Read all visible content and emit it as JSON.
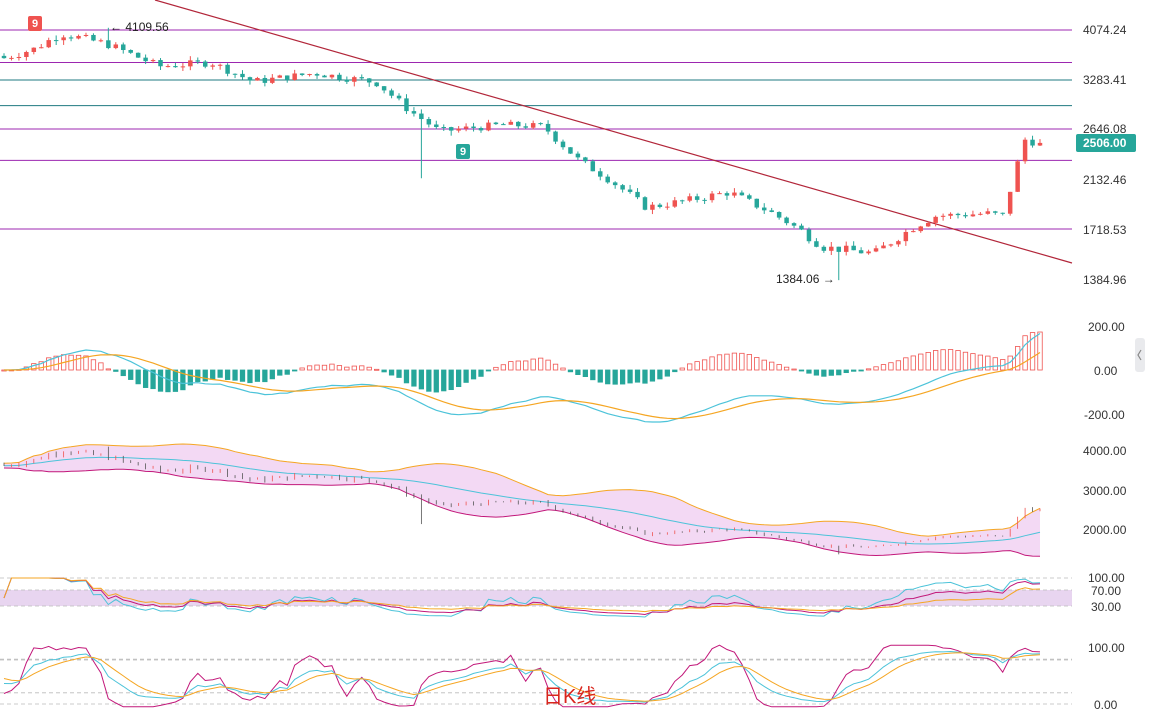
{
  "colors": {
    "up": "#ef5350",
    "down": "#26a69a",
    "trendline": "#b2263a",
    "magenta_level": "#9c27b0",
    "teal_level": "#1f7a80",
    "ma_blue": "#4cc3d9",
    "ma_orange": "#f5a623",
    "boll_upper": "#f5a623",
    "boll_lower": "#c2187a",
    "boll_fill": "#f3d9f4",
    "rsi_band": "#e8d5f0",
    "price_tag": "#26a69a"
  },
  "labels": {
    "watermark": "日K线",
    "high_note": "4109.56",
    "low_note": "1384.06",
    "current_price": "2506.00",
    "signal_red": "9",
    "signal_green": "9"
  },
  "chart_data": [
    {
      "type": "candlestick",
      "title": "",
      "y_ticks": [
        "4074.24",
        "3283.41",
        "2646.08",
        "2132.46",
        "1718.53",
        "1384.96"
      ],
      "ylim": [
        1200,
        4500
      ],
      "horizontal_levels": [
        {
          "value": 4074.24,
          "color": "magenta"
        },
        {
          "value": 3560,
          "color": "magenta"
        },
        {
          "value": 3283.41,
          "color": "teal"
        },
        {
          "value": 2950,
          "color": "teal"
        },
        {
          "value": 2646.08,
          "color": "magenta"
        },
        {
          "value": 2330,
          "color": "magenta"
        },
        {
          "value": 1718.53,
          "color": "magenta"
        }
      ],
      "trendline": [
        {
          "x": 0,
          "y": 4700
        },
        {
          "x": 1,
          "y": 1480
        }
      ],
      "annotations": [
        {
          "text": "4109.56",
          "type": "high"
        },
        {
          "text": "1384.06",
          "type": "low"
        }
      ],
      "anchors": [
        {
          "x": 0.0,
          "close": 3630
        },
        {
          "x": 0.03,
          "close": 3780
        },
        {
          "x": 0.055,
          "close": 4020
        },
        {
          "x": 0.1,
          "close": 3850
        },
        {
          "x": 0.15,
          "close": 3500
        },
        {
          "x": 0.2,
          "close": 3560
        },
        {
          "x": 0.24,
          "close": 3260
        },
        {
          "x": 0.3,
          "close": 3390
        },
        {
          "x": 0.36,
          "close": 3250
        },
        {
          "x": 0.39,
          "close": 2900
        },
        {
          "x": 0.42,
          "close": 2620
        },
        {
          "x": 0.48,
          "close": 2700
        },
        {
          "x": 0.52,
          "close": 2680
        },
        {
          "x": 0.555,
          "close": 2330
        },
        {
          "x": 0.59,
          "close": 2100
        },
        {
          "x": 0.62,
          "close": 1900
        },
        {
          "x": 0.66,
          "close": 1960
        },
        {
          "x": 0.7,
          "close": 2030
        },
        {
          "x": 0.74,
          "close": 1860
        },
        {
          "x": 0.79,
          "close": 1600
        },
        {
          "x": 0.84,
          "close": 1560
        },
        {
          "x": 0.9,
          "close": 1830
        },
        {
          "x": 0.95,
          "close": 1850
        },
        {
          "x": 0.965,
          "close": 1830
        },
        {
          "x": 0.975,
          "close": 2180
        },
        {
          "x": 0.985,
          "close": 2540
        },
        {
          "x": 1.0,
          "close": 2506
        }
      ]
    },
    {
      "type": "macd",
      "y_ticks": [
        "200.00",
        "0.00",
        "-200.00"
      ],
      "ylim": [
        -260,
        260
      ]
    },
    {
      "type": "bollinger",
      "y_ticks": [
        "4000.00",
        "3000.00",
        "2000.00"
      ],
      "ylim": [
        1300,
        4500
      ]
    },
    {
      "type": "rsi",
      "y_ticks": [
        "100.00",
        "70.00",
        "30.00"
      ],
      "ylim": [
        0,
        110
      ]
    },
    {
      "type": "kdj",
      "y_ticks": [
        "100.00",
        "0.00"
      ],
      "ylim": [
        -10,
        110
      ]
    }
  ]
}
